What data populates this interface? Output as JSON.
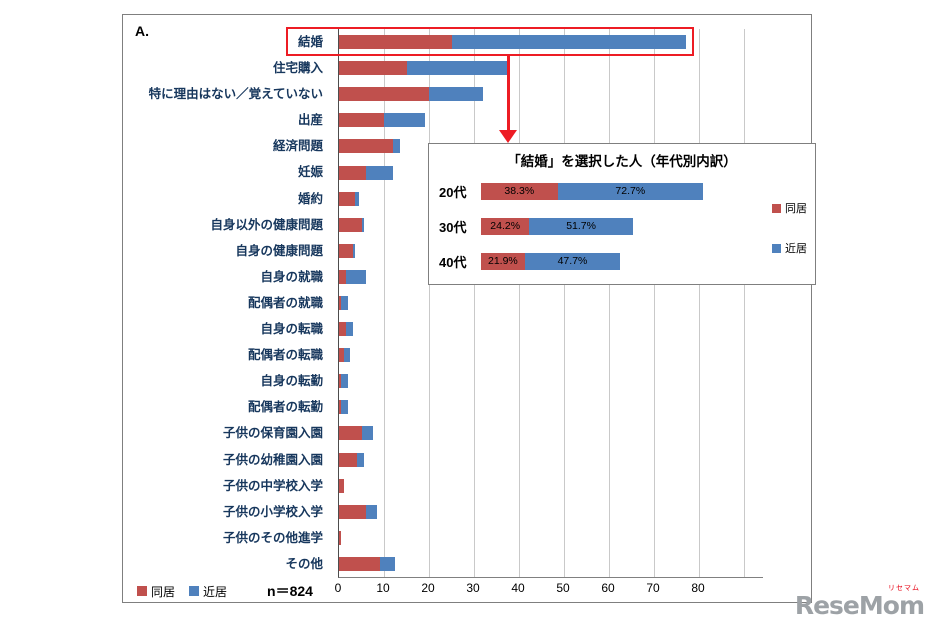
{
  "page": {
    "label_a": "А.",
    "n_label": "n＝824"
  },
  "colors": {
    "doukyo_red": "#C0504D",
    "kinkyo_blue": "#4F81BD",
    "highlight_red": "#ED1C24",
    "grid_gray": "#C9C9C9",
    "category_label": "#17375D"
  },
  "legend": {
    "doukyo": "同居",
    "kinkyo": "近居"
  },
  "chart_data": [
    {
      "type": "bar",
      "orientation": "horizontal",
      "stacked": true,
      "title": "",
      "categories": [
        "結婚",
        "住宅購入",
        "特に理由はない／覚えていない",
        "出産",
        "経済問題",
        "妊娠",
        "婚約",
        "自身以外の健康問題",
        "自身の健康問題",
        "自身の就職",
        "配偶者の就職",
        "自身の転職",
        "配偶者の転職",
        "自身の転勤",
        "配偶者の転勤",
        "子供の保育園入園",
        "子供の幼稚園入園",
        "子供の中学校入学",
        "子供の小学校入学",
        "子供のその他進学",
        "その他"
      ],
      "series": [
        {
          "name": "同居",
          "color": "#C0504D",
          "values": [
            25,
            15,
            20,
            10,
            12,
            6,
            3.5,
            5,
            3,
            1.5,
            0.5,
            1.5,
            1,
            0.5,
            0.5,
            5,
            4,
            1,
            6,
            0.5,
            9
          ]
        },
        {
          "name": "近居",
          "color": "#4F81BD",
          "values": [
            52,
            23,
            12,
            9,
            1.5,
            6,
            1,
            0.5,
            0.5,
            4.5,
            1.5,
            1.5,
            1.5,
            1.5,
            1.5,
            2.5,
            1.5,
            0,
            2.5,
            0,
            3.5
          ]
        }
      ],
      "xlim": [
        0,
        94
      ],
      "x_ticks": [
        0,
        10,
        20,
        30,
        40,
        50,
        60,
        70,
        80
      ],
      "grid": true,
      "legend_position": "bottom-left",
      "n": "n＝824",
      "highlighted_category": "結婚"
    },
    {
      "type": "bar",
      "orientation": "horizontal",
      "stacked": true,
      "title": "「結婚」を選択した人（年代別内訳）",
      "categories": [
        "20代",
        "30代",
        "40代"
      ],
      "series": [
        {
          "name": "同居",
          "color": "#C0504D",
          "values": [
            38.3,
            24.2,
            21.9
          ],
          "labels": [
            "38.3%",
            "24.2%",
            "21.9%"
          ]
        },
        {
          "name": "近居",
          "color": "#4F81BD",
          "values": [
            72.7,
            51.7,
            47.7
          ],
          "labels": [
            "72.7%",
            "51.7%",
            "47.7%"
          ]
        }
      ],
      "grid": false,
      "legend_position": "right"
    }
  ],
  "logo": {
    "text": "ReseMom",
    "sub": "リセマム"
  }
}
